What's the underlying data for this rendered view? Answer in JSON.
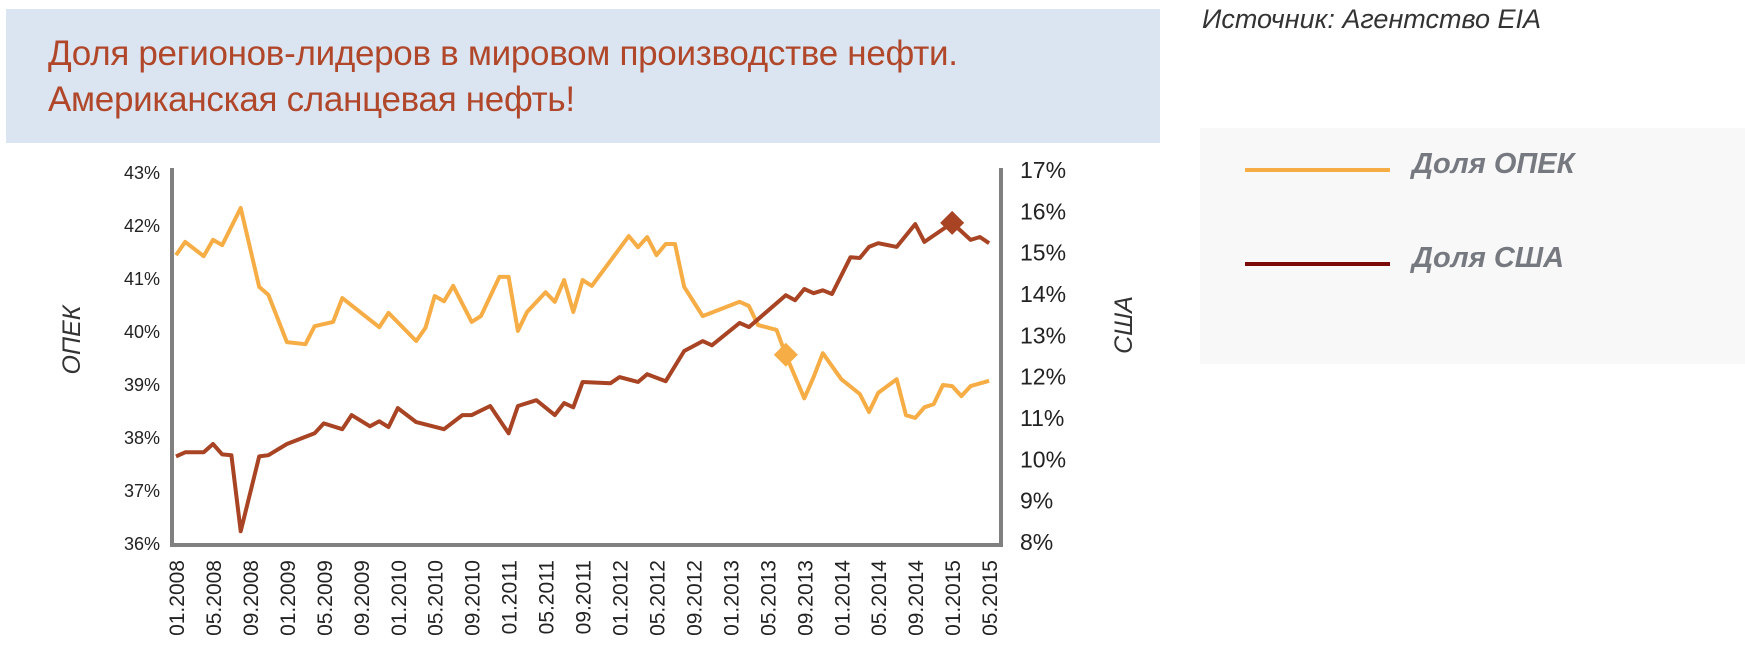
{
  "header": {
    "title_line1": "Доля регионов-лидеров в мировом производстве нефти.",
    "title_line2": "Американская сланцевая нефть!",
    "source": "Источник:  Агентство EIA"
  },
  "legend": {
    "items": [
      {
        "label": "Доля ОПЕК",
        "color": "#f6ad45"
      },
      {
        "label": "Доля США",
        "color": "#7a0a0a"
      }
    ]
  },
  "chart_data": {
    "type": "line",
    "title": "Доля регионов-лидеров в мировом производстве нефти. Американская сланцевая нефть!",
    "xlabel": "",
    "y_left_label": "ОПЕК",
    "y_right_label": "США",
    "y_left_lim": [
      36,
      43
    ],
    "y_right_lim": [
      8,
      17
    ],
    "y_left_ticks": [
      "43%",
      "42%",
      "41%",
      "40%",
      "39%",
      "38%",
      "37%",
      "36%"
    ],
    "y_right_ticks": [
      "17%",
      "16%",
      "15%",
      "14%",
      "13%",
      "12%",
      "11%",
      "10%",
      "9%",
      "8%"
    ],
    "x_ticks": [
      "01.2008",
      "05.2008",
      "09.2008",
      "01.2009",
      "05.2009",
      "09.2009",
      "01.2010",
      "05.2010",
      "09.2010",
      "01.2011",
      "05.2011",
      "09.2011",
      "01.2012",
      "05.2012",
      "09.2012",
      "01.2013",
      "05.2013",
      "09.2013",
      "01.2014",
      "05.2014",
      "09.2014",
      "01.2015",
      "05.2015"
    ],
    "grid": false,
    "legend_position": "right",
    "series": [
      {
        "name": "Доля ОПЕК",
        "axis": "left",
        "color": "#f6ad45",
        "marker": {
          "x": "07.2013",
          "y": 39.57
        },
        "points": [
          [
            "01.2008",
            41.45
          ],
          [
            "02.2008",
            41.7
          ],
          [
            "04.2008",
            41.43
          ],
          [
            "05.2008",
            41.74
          ],
          [
            "06.2008",
            41.64
          ],
          [
            "08.2008",
            42.34
          ],
          [
            "10.2008",
            40.85
          ],
          [
            "11.2008",
            40.7
          ],
          [
            "01.2009",
            39.81
          ],
          [
            "03.2009",
            39.77
          ],
          [
            "04.2009",
            40.11
          ],
          [
            "06.2009",
            40.19
          ],
          [
            "07.2009",
            40.64
          ],
          [
            "11.2009",
            40.09
          ],
          [
            "12.2009",
            40.36
          ],
          [
            "03.2010",
            39.83
          ],
          [
            "04.2010",
            40.08
          ],
          [
            "05.2010",
            40.68
          ],
          [
            "06.2010",
            40.58
          ],
          [
            "07.2010",
            40.87
          ],
          [
            "09.2010",
            40.19
          ],
          [
            "10.2010",
            40.3
          ],
          [
            "12.2010",
            41.04
          ],
          [
            "01.2011",
            41.04
          ],
          [
            "02.2011",
            40.02
          ],
          [
            "03.2011",
            40.38
          ],
          [
            "05.2011",
            40.75
          ],
          [
            "06.2011",
            40.57
          ],
          [
            "07.2011",
            40.98
          ],
          [
            "08.2011",
            40.38
          ],
          [
            "09.2011",
            40.98
          ],
          [
            "10.2011",
            40.87
          ],
          [
            "02.2012",
            41.81
          ],
          [
            "03.2012",
            41.6
          ],
          [
            "04.2012",
            41.79
          ],
          [
            "05.2012",
            41.45
          ],
          [
            "06.2012",
            41.66
          ],
          [
            "07.2012",
            41.66
          ],
          [
            "08.2012",
            40.85
          ],
          [
            "10.2012",
            40.3
          ],
          [
            "02.2013",
            40.57
          ],
          [
            "03.2013",
            40.49
          ],
          [
            "04.2013",
            40.13
          ],
          [
            "06.2013",
            40.04
          ],
          [
            "07.2013",
            39.57
          ],
          [
            "09.2013",
            38.75
          ],
          [
            "10.2013",
            39.15
          ],
          [
            "11.2013",
            39.6
          ],
          [
            "01.2014",
            39.11
          ],
          [
            "03.2014",
            38.83
          ],
          [
            "04.2014",
            38.49
          ],
          [
            "05.2014",
            38.85
          ],
          [
            "07.2014",
            39.11
          ],
          [
            "08.2014",
            38.43
          ],
          [
            "09.2014",
            38.38
          ],
          [
            "10.2014",
            38.58
          ],
          [
            "11.2014",
            38.64
          ],
          [
            "12.2014",
            39.0
          ],
          [
            "01.2015",
            38.98
          ],
          [
            "02.2015",
            38.79
          ],
          [
            "03.2015",
            38.98
          ],
          [
            "05.2015",
            39.08
          ]
        ]
      },
      {
        "name": "Доля США",
        "axis": "right",
        "color": "#a84424",
        "marker": {
          "x": "01.2015",
          "y": 15.72
        },
        "points": [
          [
            "01.2008",
            10.07
          ],
          [
            "02.2008",
            10.17
          ],
          [
            "04.2008",
            10.17
          ],
          [
            "05.2008",
            10.37
          ],
          [
            "06.2008",
            10.12
          ],
          [
            "07.2008",
            10.1
          ],
          [
            "08.2008",
            8.26
          ],
          [
            "10.2008",
            10.07
          ],
          [
            "11.2008",
            10.1
          ],
          [
            "01.2009",
            10.37
          ],
          [
            "04.2009",
            10.63
          ],
          [
            "05.2009",
            10.87
          ],
          [
            "07.2009",
            10.73
          ],
          [
            "08.2009",
            11.07
          ],
          [
            "10.2009",
            10.8
          ],
          [
            "11.2009",
            10.92
          ],
          [
            "12.2009",
            10.78
          ],
          [
            "01.2010",
            11.24
          ],
          [
            "03.2010",
            10.9
          ],
          [
            "06.2010",
            10.73
          ],
          [
            "08.2010",
            11.07
          ],
          [
            "09.2010",
            11.07
          ],
          [
            "11.2010",
            11.29
          ],
          [
            "01.2011",
            10.63
          ],
          [
            "02.2011",
            11.29
          ],
          [
            "04.2011",
            11.43
          ],
          [
            "06.2011",
            11.07
          ],
          [
            "07.2011",
            11.36
          ],
          [
            "08.2011",
            11.26
          ],
          [
            "09.2011",
            11.87
          ],
          [
            "12.2011",
            11.84
          ],
          [
            "01.2012",
            11.99
          ],
          [
            "03.2012",
            11.87
          ],
          [
            "04.2012",
            12.06
          ],
          [
            "06.2012",
            11.89
          ],
          [
            "08.2012",
            12.62
          ],
          [
            "10.2012",
            12.86
          ],
          [
            "11.2012",
            12.76
          ],
          [
            "02.2013",
            13.3
          ],
          [
            "03.2013",
            13.2
          ],
          [
            "04.2013",
            13.39
          ],
          [
            "07.2013",
            13.97
          ],
          [
            "08.2013",
            13.85
          ],
          [
            "09.2013",
            14.12
          ],
          [
            "10.2013",
            14.02
          ],
          [
            "11.2013",
            14.09
          ],
          [
            "12.2013",
            14.0
          ],
          [
            "02.2014",
            14.89
          ],
          [
            "03.2014",
            14.87
          ],
          [
            "04.2014",
            15.14
          ],
          [
            "05.2014",
            15.23
          ],
          [
            "07.2014",
            15.14
          ],
          [
            "09.2014",
            15.69
          ],
          [
            "10.2014",
            15.26
          ],
          [
            "01.2015",
            15.72
          ],
          [
            "03.2015",
            15.31
          ],
          [
            "04.2015",
            15.38
          ],
          [
            "05.2015",
            15.23
          ]
        ]
      }
    ]
  }
}
